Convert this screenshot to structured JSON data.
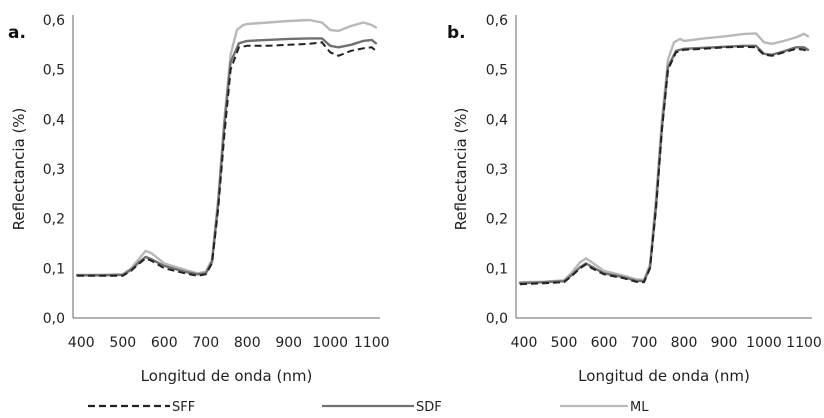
{
  "chart_data": [
    {
      "type": "line",
      "panel_label": "a.",
      "xlabel": "Longitud de onda (nm)",
      "ylabel": "Reflectancia (%)",
      "xlim": [
        380,
        1120
      ],
      "ylim": [
        0,
        0.6
      ],
      "xticks": [
        "400",
        "500",
        "600",
        "700",
        "800",
        "900",
        "1000",
        "1100"
      ],
      "yticks": [
        "0,0",
        "0,1",
        "0,2",
        "0,3",
        "0,4",
        "0,5",
        "0,6"
      ],
      "grid": false,
      "series": [
        {
          "name": "SFF",
          "style": "dashed",
          "color": "#222222",
          "x": [
            390,
            450,
            500,
            520,
            540,
            555,
            570,
            600,
            650,
            680,
            700,
            715,
            730,
            745,
            760,
            780,
            800,
            850,
            900,
            950,
            980,
            1000,
            1020,
            1050,
            1080,
            1100,
            1110
          ],
          "y": [
            0.085,
            0.085,
            0.085,
            0.095,
            0.11,
            0.12,
            0.115,
            0.1,
            0.09,
            0.085,
            0.088,
            0.11,
            0.22,
            0.37,
            0.5,
            0.545,
            0.548,
            0.548,
            0.55,
            0.552,
            0.555,
            0.535,
            0.528,
            0.538,
            0.543,
            0.545,
            0.538
          ]
        },
        {
          "name": "SDF",
          "style": "solid",
          "color": "#707070",
          "x": [
            390,
            450,
            500,
            520,
            540,
            555,
            570,
            600,
            650,
            680,
            700,
            715,
            730,
            745,
            760,
            780,
            800,
            850,
            900,
            950,
            980,
            1000,
            1020,
            1050,
            1080,
            1100,
            1110
          ],
          "y": [
            0.086,
            0.086,
            0.087,
            0.097,
            0.113,
            0.123,
            0.118,
            0.105,
            0.093,
            0.088,
            0.09,
            0.113,
            0.23,
            0.39,
            0.515,
            0.553,
            0.558,
            0.56,
            0.562,
            0.563,
            0.563,
            0.548,
            0.545,
            0.55,
            0.558,
            0.56,
            0.553
          ]
        },
        {
          "name": "ML",
          "style": "solid",
          "color": "#b8b8b8",
          "x": [
            390,
            450,
            500,
            520,
            540,
            555,
            570,
            600,
            650,
            680,
            700,
            715,
            730,
            745,
            760,
            775,
            790,
            800,
            850,
            900,
            950,
            980,
            1000,
            1020,
            1050,
            1080,
            1100,
            1110
          ],
          "y": [
            0.087,
            0.087,
            0.088,
            0.1,
            0.12,
            0.135,
            0.13,
            0.11,
            0.097,
            0.09,
            0.093,
            0.118,
            0.24,
            0.4,
            0.53,
            0.58,
            0.59,
            0.592,
            0.595,
            0.598,
            0.6,
            0.595,
            0.58,
            0.578,
            0.588,
            0.595,
            0.59,
            0.585
          ]
        }
      ]
    },
    {
      "type": "line",
      "panel_label": "b.",
      "xlabel": "Longitud de onda (nm)",
      "ylabel": "Reflectancia (%)",
      "xlim": [
        380,
        1120
      ],
      "ylim": [
        0,
        0.6
      ],
      "xticks": [
        "400",
        "500",
        "600",
        "700",
        "800",
        "900",
        "1000",
        "1100"
      ],
      "yticks": [
        "0,0",
        "0,1",
        "0,2",
        "0,3",
        "0,4",
        "0,5",
        "0,6"
      ],
      "grid": false,
      "series": [
        {
          "name": "SFF",
          "style": "dashed",
          "color": "#222222",
          "x": [
            390,
            450,
            500,
            520,
            540,
            555,
            570,
            600,
            650,
            680,
            700,
            715,
            730,
            745,
            760,
            780,
            800,
            850,
            900,
            950,
            980,
            1000,
            1020,
            1050,
            1080,
            1100,
            1110
          ],
          "y": [
            0.068,
            0.07,
            0.072,
            0.085,
            0.1,
            0.108,
            0.1,
            0.088,
            0.08,
            0.073,
            0.072,
            0.1,
            0.22,
            0.38,
            0.5,
            0.535,
            0.54,
            0.542,
            0.545,
            0.546,
            0.545,
            0.53,
            0.528,
            0.535,
            0.542,
            0.54,
            0.536
          ]
        },
        {
          "name": "SDF",
          "style": "solid",
          "color": "#707070",
          "x": [
            390,
            450,
            500,
            520,
            540,
            555,
            570,
            600,
            650,
            680,
            700,
            715,
            730,
            745,
            760,
            780,
            800,
            850,
            900,
            950,
            980,
            1000,
            1020,
            1050,
            1080,
            1100,
            1110
          ],
          "y": [
            0.07,
            0.072,
            0.074,
            0.087,
            0.102,
            0.11,
            0.103,
            0.09,
            0.082,
            0.075,
            0.074,
            0.102,
            0.225,
            0.385,
            0.505,
            0.538,
            0.542,
            0.544,
            0.546,
            0.548,
            0.548,
            0.532,
            0.53,
            0.537,
            0.545,
            0.545,
            0.54
          ]
        },
        {
          "name": "ML",
          "style": "solid",
          "color": "#b8b8b8",
          "x": [
            390,
            450,
            500,
            520,
            540,
            555,
            570,
            600,
            650,
            680,
            700,
            715,
            730,
            745,
            760,
            775,
            790,
            800,
            850,
            900,
            950,
            980,
            1000,
            1020,
            1050,
            1080,
            1100,
            1110
          ],
          "y": [
            0.072,
            0.073,
            0.076,
            0.092,
            0.112,
            0.12,
            0.112,
            0.095,
            0.085,
            0.078,
            0.077,
            0.108,
            0.24,
            0.4,
            0.52,
            0.555,
            0.562,
            0.558,
            0.563,
            0.567,
            0.572,
            0.573,
            0.555,
            0.552,
            0.558,
            0.565,
            0.572,
            0.567
          ]
        }
      ]
    }
  ],
  "legend": {
    "placement": "bottom",
    "items": [
      {
        "name": "SFF",
        "style": "dashed",
        "color": "#222222"
      },
      {
        "name": "SDF",
        "style": "solid",
        "color": "#707070"
      },
      {
        "name": "ML",
        "style": "solid",
        "color": "#b8b8b8"
      }
    ]
  }
}
